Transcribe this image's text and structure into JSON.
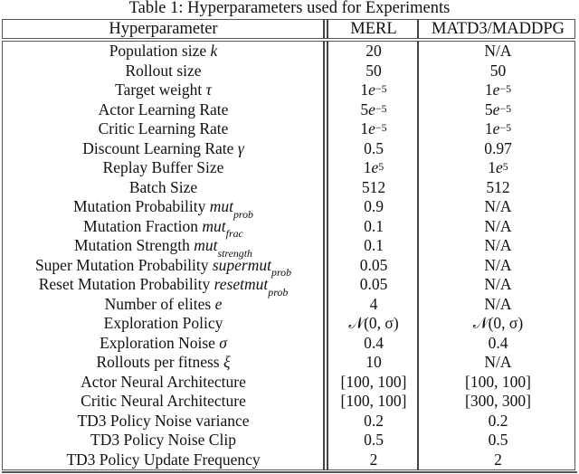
{
  "caption": "Table 1: Hyperparameters used for Experiments",
  "table": {
    "headers": [
      "Hyperparameter",
      "MERL",
      "MATD3/MADDPG"
    ],
    "rows": [
      {
        "label": "Population size ",
        "sym": "k",
        "sub": "",
        "merl": "20",
        "matd3": "N/A"
      },
      {
        "label": "Rollout size",
        "sym": "",
        "sub": "",
        "merl": "50",
        "matd3": "50"
      },
      {
        "label": "Target weight ",
        "sym": "τ",
        "sub": "",
        "merl": "1e⁻⁵",
        "matd3": "1e⁻⁵",
        "merl_base": "1",
        "merl_e": "e",
        "merl_exp": "−5",
        "matd3_base": "1",
        "matd3_e": "e",
        "matd3_exp": "−5"
      },
      {
        "label": "Actor Learning Rate",
        "sym": "",
        "sub": "",
        "merl": "5e⁻⁵",
        "matd3": "5e⁻⁵",
        "merl_base": "5",
        "merl_e": "e",
        "merl_exp": "−5",
        "matd3_base": "5",
        "matd3_e": "e",
        "matd3_exp": "−5"
      },
      {
        "label": "Critic Learning Rate",
        "sym": "",
        "sub": "",
        "merl": "1e⁻⁵",
        "matd3": "1e⁻⁵",
        "merl_base": "1",
        "merl_e": "e",
        "merl_exp": "−5",
        "matd3_base": "1",
        "matd3_e": "e",
        "matd3_exp": "−5"
      },
      {
        "label": "Discount Learning Rate ",
        "sym": "γ",
        "sub": "",
        "merl": "0.5",
        "matd3": "0.97"
      },
      {
        "label": "Replay Buffer Size",
        "sym": "",
        "sub": "",
        "merl": "1e⁵",
        "matd3": "1e⁵",
        "merl_base": "1",
        "merl_e": "e",
        "merl_exp": "5",
        "matd3_base": "1",
        "matd3_e": "e",
        "matd3_exp": "5"
      },
      {
        "label": "Batch Size",
        "sym": "",
        "sub": "",
        "merl": "512",
        "matd3": "512"
      },
      {
        "label": "Mutation Probability ",
        "sym": "mut",
        "sub": "prob",
        "merl": "0.9",
        "matd3": "N/A"
      },
      {
        "label": "Mutation Fraction ",
        "sym": "mut",
        "sub": "frac",
        "merl": "0.1",
        "matd3": "N/A"
      },
      {
        "label": "Mutation Strength ",
        "sym": "mut",
        "sub": "strength",
        "merl": "0.1",
        "matd3": "N/A"
      },
      {
        "label": "Super Mutation Probability ",
        "sym": "supermut",
        "sub": "prob",
        "merl": "0.05",
        "matd3": "N/A"
      },
      {
        "label": "Reset Mutation Probability ",
        "sym": "resetmut",
        "sub": "prob",
        "merl": "0.05",
        "matd3": "N/A"
      },
      {
        "label": "Number of elites ",
        "sym": "e",
        "sub": "",
        "merl": "4",
        "matd3": "N/A"
      },
      {
        "label": "Exploration Policy",
        "sym": "",
        "sub": "",
        "merl": "𝒩(0, σ)",
        "matd3": "𝒩(0, σ)"
      },
      {
        "label": "Exploration Noise ",
        "sym": "σ",
        "sub": "",
        "merl": "0.4",
        "matd3": "0.4"
      },
      {
        "label": "Rollouts per fitness ",
        "sym": "ξ",
        "sub": "",
        "merl": "10",
        "matd3": "N/A"
      },
      {
        "label": "Actor Neural Architecture",
        "sym": "",
        "sub": "",
        "merl": "[100, 100]",
        "matd3": "[100, 100]"
      },
      {
        "label": "Critic Neural Architecture",
        "sym": "",
        "sub": "",
        "merl": "[100, 100]",
        "matd3": "[300, 300]"
      },
      {
        "label": "TD3 Policy Noise variance",
        "sym": "",
        "sub": "",
        "merl": "0.2",
        "matd3": "0.2"
      },
      {
        "label": "TD3 Policy Noise Clip",
        "sym": "",
        "sub": "",
        "merl": "0.5",
        "matd3": "0.5"
      },
      {
        "label": "TD3 Policy Update Frequency",
        "sym": "",
        "sub": "",
        "merl": "2",
        "matd3": "2"
      }
    ]
  }
}
